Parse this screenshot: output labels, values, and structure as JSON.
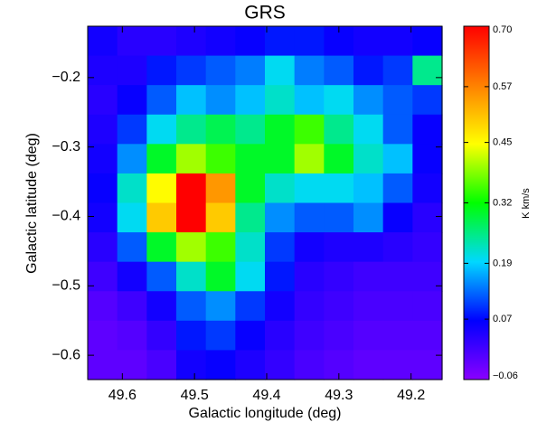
{
  "chart_data": {
    "type": "heatmap",
    "title": "GRS",
    "xlabel": "Galactic longitude (deg)",
    "ylabel": "Galactic latitude (deg)",
    "xlim": [
      49.648,
      49.157
    ],
    "ylim": [
      -0.635,
      -0.126
    ],
    "xticks": [
      49.6,
      49.5,
      49.4,
      49.3,
      49.2
    ],
    "yticks": [
      {
        "value": -0.2,
        "label": "−0.2"
      },
      {
        "value": -0.3,
        "label": "−0.3"
      },
      {
        "value": -0.4,
        "label": "−0.4"
      },
      {
        "value": -0.5,
        "label": "−0.5"
      },
      {
        "value": -0.6,
        "label": "−0.6"
      }
    ],
    "colorbar": {
      "label": "K km/s",
      "lim": [
        -0.06,
        0.7
      ],
      "ticks": [
        {
          "value": 0.7,
          "label": "0.70"
        },
        {
          "value": 0.57,
          "label": "0.57"
        },
        {
          "value": 0.45,
          "label": "0.45"
        },
        {
          "value": 0.32,
          "label": "0.32"
        },
        {
          "value": 0.19,
          "label": "0.19"
        },
        {
          "value": 0.07,
          "label": "0.07"
        },
        {
          "value": -0.06,
          "label": "−0.06"
        }
      ],
      "colormap": [
        "#8a00ff",
        "#0000ff",
        "#00d8ff",
        "#00ff00",
        "#ffff00",
        "#ff8000",
        "#ff0000"
      ]
    },
    "z": [
      [
        0.05,
        0.03,
        0.03,
        0.04,
        0.05,
        0.06,
        0.08,
        0.08,
        0.06,
        0.05,
        0.05,
        0.06
      ],
      [
        0.04,
        0.04,
        0.08,
        0.1,
        0.12,
        0.14,
        0.2,
        0.14,
        0.12,
        0.08,
        0.1,
        0.25
      ],
      [
        0.03,
        0.06,
        0.12,
        0.18,
        0.15,
        0.18,
        0.22,
        0.18,
        0.2,
        0.15,
        0.12,
        0.1
      ],
      [
        0.04,
        0.1,
        0.2,
        0.25,
        0.28,
        0.25,
        0.3,
        0.35,
        0.25,
        0.2,
        0.12,
        0.06
      ],
      [
        0.05,
        0.15,
        0.3,
        0.4,
        0.35,
        0.3,
        0.3,
        0.4,
        0.3,
        0.22,
        0.18,
        0.06
      ],
      [
        0.06,
        0.22,
        0.45,
        0.7,
        0.55,
        0.3,
        0.22,
        0.2,
        0.2,
        0.18,
        0.12,
        0.05
      ],
      [
        0.05,
        0.2,
        0.5,
        0.7,
        0.5,
        0.25,
        0.15,
        0.12,
        0.12,
        0.15,
        0.06,
        0.03
      ],
      [
        0.03,
        0.12,
        0.3,
        0.4,
        0.35,
        0.22,
        0.1,
        0.05,
        0.04,
        0.04,
        0.03,
        0.02
      ],
      [
        0.01,
        0.05,
        0.12,
        0.22,
        0.3,
        0.2,
        0.08,
        0.03,
        0.02,
        0.01,
        0.01,
        0.01
      ],
      [
        -0.01,
        0.01,
        0.05,
        0.12,
        0.15,
        0.1,
        0.05,
        0.02,
        0.01,
        0.0,
        0.0,
        0.0
      ],
      [
        -0.02,
        -0.01,
        0.02,
        0.08,
        0.1,
        0.06,
        0.03,
        0.01,
        0.0,
        -0.01,
        -0.01,
        -0.01
      ],
      [
        -0.02,
        -0.02,
        0.0,
        0.05,
        0.06,
        0.04,
        0.02,
        0.0,
        -0.01,
        -0.02,
        -0.02,
        -0.02
      ]
    ]
  }
}
